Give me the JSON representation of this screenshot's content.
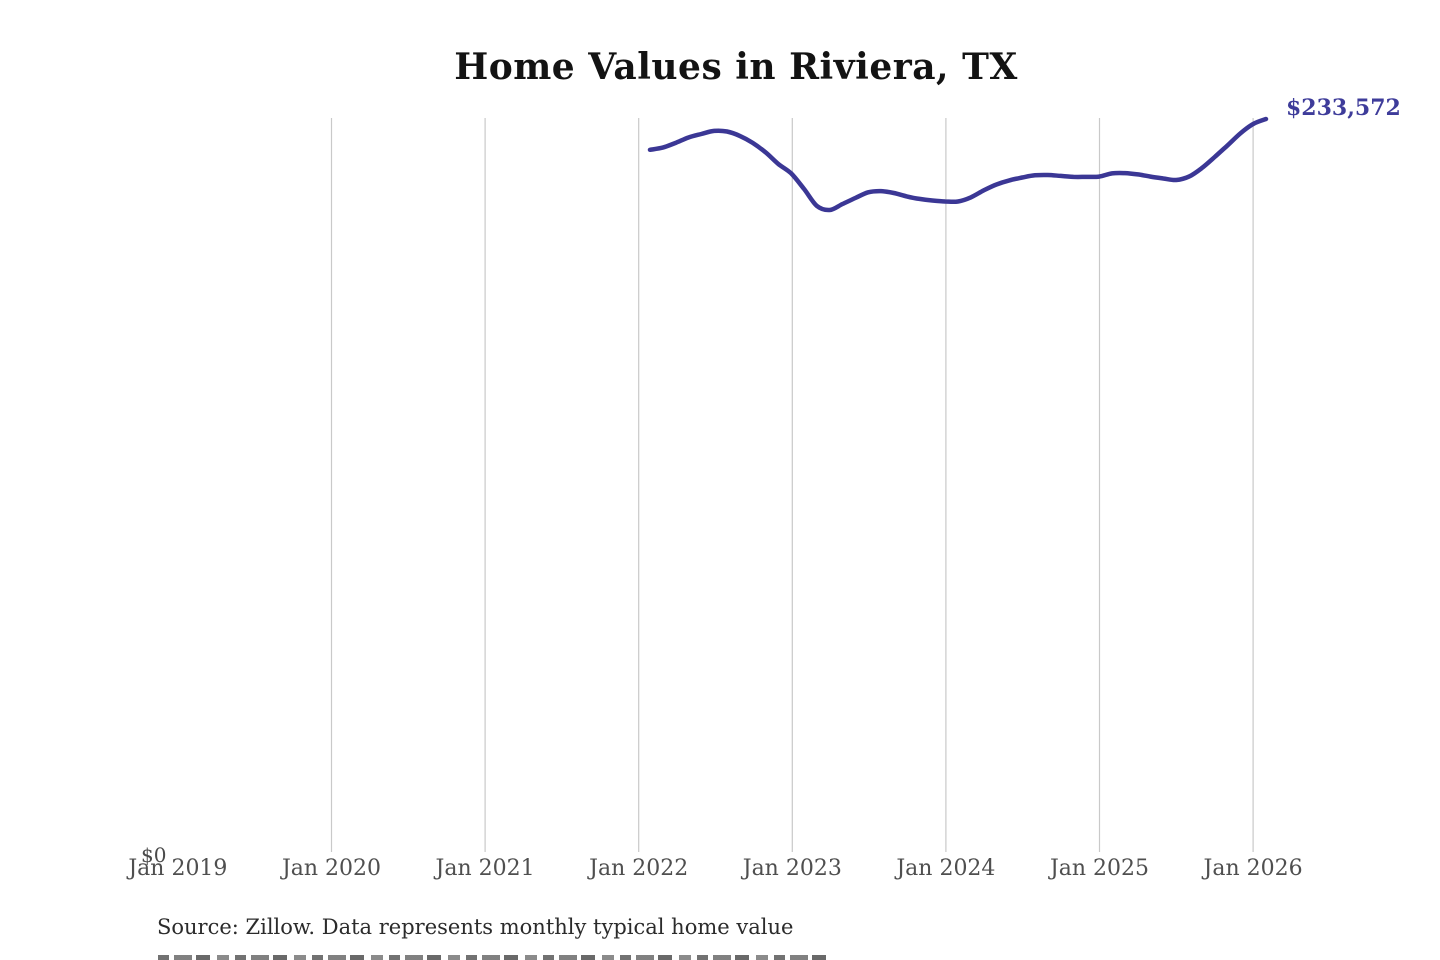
{
  "page": {
    "title": "Home Values in Riviera, TX",
    "final_value_label": "$233,572",
    "y_zero_label": "$0",
    "source_note": "Source: Zillow. Data represents monthly typical home value"
  },
  "colors": {
    "line": "#3b3795",
    "end_label": "#3e3c9a",
    "gridline": "#c9c9c9",
    "axis_text": "#4f4f4f",
    "title_text": "#131313",
    "source_text": "#2b2b2b",
    "background": "#ffffff"
  },
  "chart_data": {
    "type": "line",
    "title": "Home Values in Riviera, TX",
    "x_tick_labels": [
      "Jan 2019",
      "Jan 2020",
      "Jan 2021",
      "Jan 2022",
      "Jan 2023",
      "Jan 2024",
      "Jan 2025",
      "Jan 2026"
    ],
    "ylabel": "",
    "unit": "USD",
    "ylim": [
      0,
      245000
    ],
    "grid": "vertical gridlines at each January tick; no horizontal gridlines",
    "legend_position": "none",
    "frequency": "monthly",
    "series_start": "Feb 2022",
    "series_end": "Feb 2026",
    "final_value": 233572,
    "final_value_label": "$233,572",
    "series": [
      {
        "name": "Typical home value",
        "values": [
          223800,
          224500,
          226000,
          227700,
          228800,
          229800,
          229600,
          228200,
          226000,
          223000,
          219300,
          216300,
          211400,
          206000,
          204700,
          206600,
          208500,
          210300,
          210700,
          210100,
          209000,
          208200,
          207700,
          207400,
          207400,
          208700,
          210900,
          212800,
          214100,
          215000,
          215700,
          215800,
          215500,
          215200,
          215200,
          215300,
          216300,
          216400,
          216000,
          215300,
          214700,
          214200,
          215300,
          218000,
          221500,
          225200,
          229000,
          232000,
          233572
        ]
      }
    ]
  }
}
